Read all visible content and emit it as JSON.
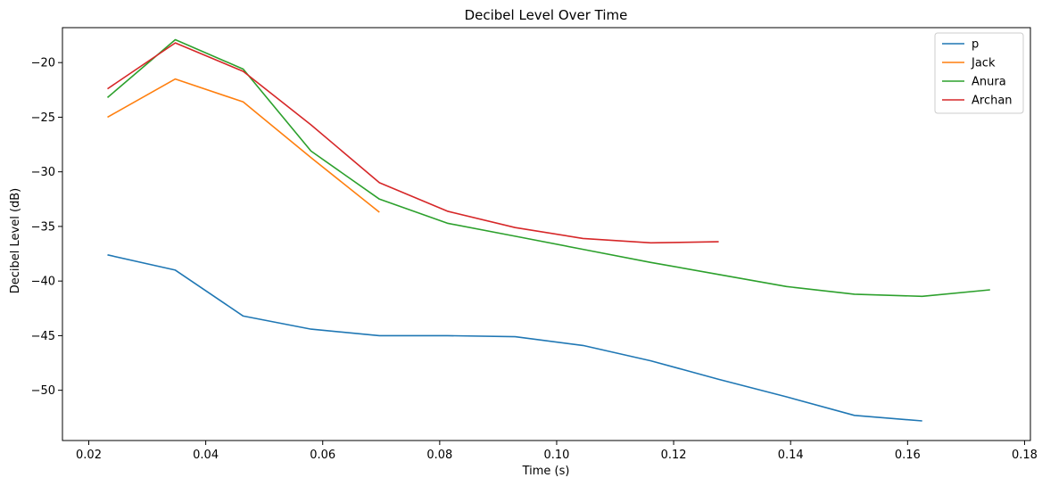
{
  "chart_data": {
    "type": "line",
    "title": "Decibel Level Over Time",
    "xlabel": "Time (s)",
    "ylabel": "Decibel Level (dB)",
    "xlim": [
      0.0155,
      0.181
    ],
    "ylim": [
      -54.6,
      -16.8
    ],
    "xticks": [
      0.02,
      0.04,
      0.06,
      0.08,
      0.1,
      0.12,
      0.14,
      0.16,
      0.18
    ],
    "xtick_labels": [
      "0.02",
      "0.04",
      "0.06",
      "0.08",
      "0.10",
      "0.12",
      "0.14",
      "0.16",
      "0.18"
    ],
    "yticks": [
      -50,
      -45,
      -40,
      -35,
      -30,
      -25,
      -20
    ],
    "ytick_labels": [
      "−50",
      "−45",
      "−40",
      "−35",
      "−30",
      "−25",
      "−20"
    ],
    "grid": false,
    "legend_position": "top-right",
    "series": [
      {
        "name": "p",
        "color": "#1f77b4",
        "x": [
          0.0232,
          0.0348,
          0.0464,
          0.058,
          0.0697,
          0.0813,
          0.0929,
          0.1045,
          0.1161,
          0.1277,
          0.1393,
          0.1509,
          0.1625
        ],
        "y": [
          -37.6,
          -39.0,
          -43.2,
          -44.4,
          -45.0,
          -45.0,
          -45.1,
          -45.9,
          -47.3,
          -49.0,
          -50.6,
          -52.3,
          -52.8
        ]
      },
      {
        "name": "Jack",
        "color": "#ff7f0e",
        "x": [
          0.0232,
          0.0348,
          0.0464,
          0.058,
          0.0697
        ],
        "y": [
          -25.0,
          -21.5,
          -23.6,
          -28.7,
          -33.7
        ]
      },
      {
        "name": "Anura",
        "color": "#2ca02c",
        "x": [
          0.0232,
          0.0348,
          0.0464,
          0.058,
          0.0697,
          0.0813,
          0.0929,
          0.1045,
          0.1161,
          0.1277,
          0.1393,
          0.1509,
          0.1625,
          0.1741
        ],
        "y": [
          -23.2,
          -17.9,
          -20.6,
          -28.1,
          -32.5,
          -34.7,
          -35.9,
          -37.1,
          -38.3,
          -39.4,
          -40.5,
          -41.2,
          -41.4,
          -40.8
        ]
      },
      {
        "name": "Archan",
        "color": "#d62728",
        "x": [
          0.0232,
          0.0348,
          0.0464,
          0.058,
          0.0697,
          0.0813,
          0.0929,
          0.1045,
          0.1161,
          0.1277
        ],
        "y": [
          -22.4,
          -18.2,
          -20.8,
          -25.7,
          -31.0,
          -33.6,
          -35.1,
          -36.1,
          -36.5,
          -36.4
        ]
      }
    ]
  }
}
